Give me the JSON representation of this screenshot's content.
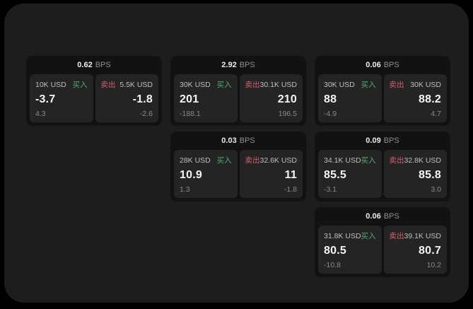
{
  "page": {
    "background": "#000000",
    "panel_background": "#1d1d1d"
  },
  "colors": {
    "buy_green": "#4fae74",
    "sell_red": "#d45f6b"
  },
  "cards": [
    {
      "bps": "0.62",
      "unit": "BPS",
      "buy": {
        "amount": "10K USD",
        "label": "买入",
        "price": "-3.7",
        "change": "4.3"
      },
      "sell": {
        "label": "卖出",
        "amount": "5.5K USD",
        "price": "-1.8",
        "change": "-2.6"
      }
    },
    {
      "bps": "2.92",
      "unit": "BPS",
      "buy": {
        "amount": "30K USD",
        "label": "买入",
        "price": "201",
        "change": "-188.1"
      },
      "sell": {
        "label": "卖出",
        "amount": "30.1K USD",
        "price": "210",
        "change": "196.5"
      }
    },
    {
      "bps": "0.06",
      "unit": "BPS",
      "buy": {
        "amount": "30K USD",
        "label": "买入",
        "price": "88",
        "change": "-4.9"
      },
      "sell": {
        "label": "卖出",
        "amount": "30K USD",
        "price": "88.2",
        "change": "4.7"
      }
    },
    {
      "bps": "0.03",
      "unit": "BPS",
      "buy": {
        "amount": "28K USD",
        "label": "买入",
        "price": "10.9",
        "change": "1.3"
      },
      "sell": {
        "label": "卖出",
        "amount": "32.6K USD",
        "price": "11",
        "change": "-1.8"
      }
    },
    {
      "bps": "0.09",
      "unit": "BPS",
      "buy": {
        "amount": "34.1K USD",
        "label": "买入",
        "price": "85.5",
        "change": "-3.1"
      },
      "sell": {
        "label": "卖出",
        "amount": "32.8K USD",
        "price": "85.8",
        "change": "3.0"
      }
    },
    {
      "bps": "0.06",
      "unit": "BPS",
      "buy": {
        "amount": "31.8K USD",
        "label": "买入",
        "price": "80.5",
        "change": "-10.8"
      },
      "sell": {
        "label": "卖出",
        "amount": "39.1K USD",
        "price": "80.7",
        "change": "10.2"
      }
    }
  ]
}
